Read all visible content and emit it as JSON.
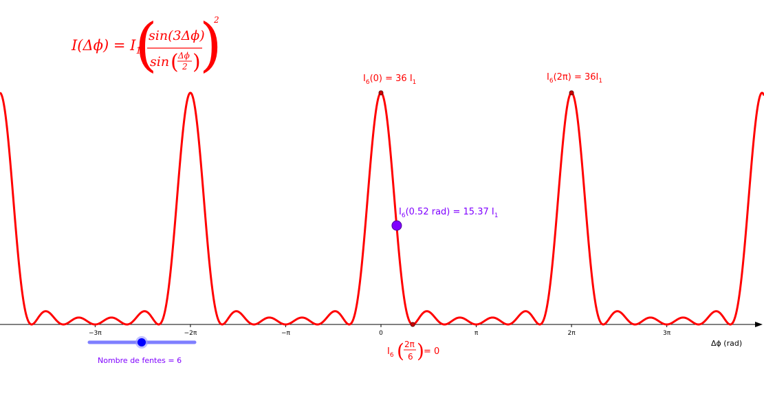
{
  "formula": {
    "lhs": "I(Δϕ) = I",
    "lhs_sub": "1",
    "numerator": "sin(3Δϕ)",
    "denominator_fn": "sin",
    "frac_num": "Δϕ",
    "frac_den": "2",
    "exponent": "2"
  },
  "annotations": {
    "peak0": {
      "main": "I",
      "sub": "6",
      "rest": "(0) = 36 I",
      "sub2": "1"
    },
    "peak2pi": {
      "main": "I",
      "sub": "6",
      "rest": "(2π) = 36I",
      "sub2": "1"
    },
    "point": {
      "main": "I",
      "sub": "6",
      "rest": "(0.52 rad) = 15.37 I",
      "sub2": "1"
    },
    "zero": {
      "main": "I",
      "sub": "6",
      "num": "2π",
      "den": "6",
      "rest": " = 0"
    }
  },
  "slider": {
    "label": "Nombre de fentes = 6",
    "value": 6
  },
  "colors": {
    "curve": "#ff0000",
    "point": "#7f00ff",
    "slider": "#7f7fff",
    "slider_knob": "#0000ff",
    "axis": "#000000"
  },
  "chart_data": {
    "type": "line",
    "function": "I(Δϕ) = I1 · (sin(3Δϕ)/sin(Δϕ/2))^2",
    "n_slits": 6,
    "xlim": [
      -12.6,
      17.5
    ],
    "ylim": [
      0,
      36
    ],
    "xlabel": "Δϕ (rad)",
    "ticks": [
      {
        "value": -9.4248,
        "label": "−3π"
      },
      {
        "value": -6.2832,
        "label": "−2π"
      },
      {
        "value": -3.1416,
        "label": "−π"
      },
      {
        "value": 0,
        "label": "0"
      },
      {
        "value": 3.1416,
        "label": "π"
      },
      {
        "value": 6.2832,
        "label": "2π"
      },
      {
        "value": 9.4248,
        "label": "3π"
      }
    ],
    "points": [
      {
        "x": 0,
        "y": 36,
        "label": "peak0"
      },
      {
        "x": 6.2832,
        "y": 36,
        "label": "peak2pi"
      },
      {
        "x": 0.52,
        "y": 15.37,
        "label": "point"
      },
      {
        "x": 1.0472,
        "y": 0,
        "label": "zero"
      }
    ]
  }
}
